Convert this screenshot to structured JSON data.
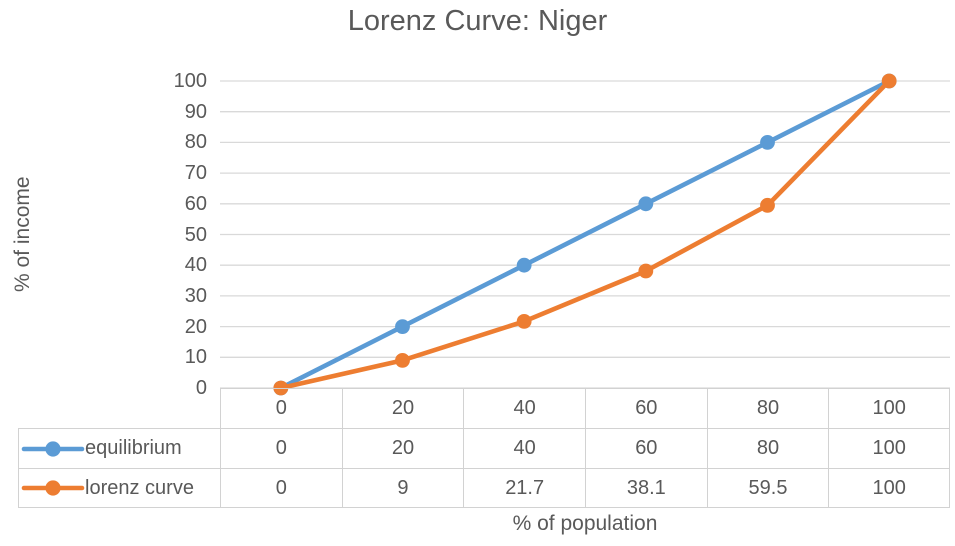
{
  "chart_data": {
    "type": "line",
    "title": "Lorenz Curve: Niger",
    "xlabel": "% of population",
    "ylabel": "% of income",
    "categories": [
      "0",
      "20",
      "40",
      "60",
      "80",
      "100"
    ],
    "series": [
      {
        "name": "equilibrium",
        "color": "#5B9BD5",
        "values": [
          0,
          20,
          40,
          60,
          80,
          100
        ],
        "labels": [
          "0",
          "20",
          "40",
          "60",
          "80",
          "100"
        ]
      },
      {
        "name": "lorenz curve",
        "color": "#ED7D31",
        "values": [
          0,
          9,
          21.7,
          38.1,
          59.5,
          100
        ],
        "labels": [
          "0",
          "9",
          "21.7",
          "38.1",
          "59.5",
          "100"
        ]
      }
    ],
    "ylim": [
      0,
      100
    ],
    "yticks": [
      "0",
      "10",
      "20",
      "30",
      "40",
      "50",
      "60",
      "70",
      "80",
      "90",
      "100"
    ],
    "grid": "horizontal",
    "gridline_color": "#D9D9D9",
    "legend_position": "data-table-left",
    "data_table": true,
    "marker": "circle"
  },
  "colors": {
    "text": "#595959",
    "grid": "#D9D9D9",
    "table_border": "#D2D2D2",
    "background": "#FFFFFF"
  }
}
